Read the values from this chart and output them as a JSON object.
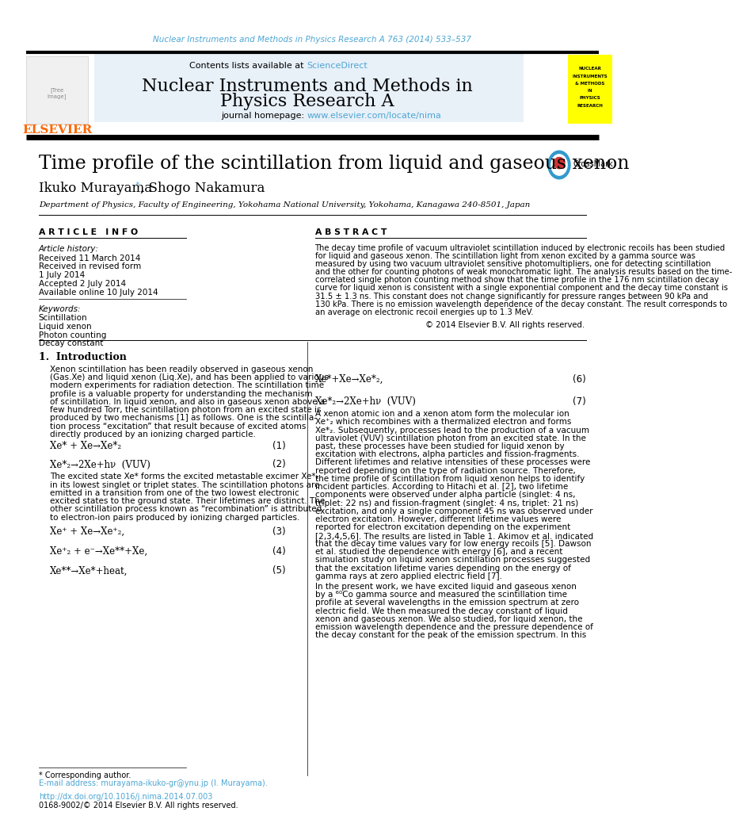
{
  "journal_ref": "Nuclear Instruments and Methods in Physics Research A 763 (2014) 533–537",
  "sciencedirect": "ScienceDirect",
  "journal_name_line1": "Nuclear Instruments and Methods in",
  "journal_name_line2": "Physics Research A",
  "journal_homepage_url": "www.elsevier.com/locate/nima",
  "article_title": "Time profile of the scintillation from liquid and gaseous xenon",
  "affiliation": "Department of Physics, Faculty of Engineering, Yokohama National University, Yokohama, Kanagawa 240-8501, Japan",
  "article_info_header": "A R T I C L E   I N F O",
  "article_history_label": "Article history:",
  "received": "Received 11 March 2014",
  "revised": "Received in revised form",
  "revised_date": "1 July 2014",
  "accepted": "Accepted 2 July 2014",
  "available": "Available online 10 July 2014",
  "keywords_label": "Keywords:",
  "keywords": [
    "Scintillation",
    "Liquid xenon",
    "Photon counting",
    "Decay constant"
  ],
  "abstract_header": "A B S T R A C T",
  "copyright": "© 2014 Elsevier B.V. All rights reserved.",
  "intro_header": "1.  Introduction",
  "footnote_star": "* Corresponding author.",
  "footnote_email": "E-mail address: murayama-ikuko-gr@ynu.jp (I. Murayama).",
  "footer_doi": "http://dx.doi.org/10.1016/j.nima.2014.07.003",
  "footer_issn": "0168-9002/© 2014 Elsevier B.V. All rights reserved.",
  "bg_header_color": "#e8f0f8",
  "journal_ref_color": "#4da6d4",
  "sciencedirect_color": "#4da6d4",
  "url_color": "#4da6d4",
  "link_color": "#4da6d4",
  "elsevier_color": "#ff6600",
  "header_bar_color": "#1a1a1a",
  "crossmark_blue": "#3399cc",
  "crossmark_red": "#cc3333",
  "yellow_badge_bg": "#ffff00",
  "abstract_lines": [
    "The decay time profile of vacuum ultraviolet scintillation induced by electronic recoils has been studied",
    "for liquid and gaseous xenon. The scintillation light from xenon excited by a gamma source was",
    "measured by using two vacuum ultraviolet sensitive photomultipliers, one for detecting scintillation",
    "and the other for counting photons of weak monochromatic light. The analysis results based on the time-",
    "correlated single photon counting method show that the time profile in the 176 nm scintillation decay",
    "curve for liquid xenon is consistent with a single exponential component and the decay time constant is",
    "31.5 ± 1.3 ns. This constant does not change significantly for pressure ranges between 90 kPa and",
    "130 kPa. There is no emission wavelength dependence of the decay constant. The result corresponds to",
    "an average on electronic recoil energies up to 1.3 MeV."
  ],
  "intro_p1_lines": [
    "Xenon scintillation has been readily observed in gaseous xenon",
    "(Gas.Xe) and liquid xenon (Liq.Xe), and has been applied to various",
    "modern experiments for radiation detection. The scintillation time",
    "profile is a valuable property for understanding the mechanism",
    "of scintillation. In liquid xenon, and also in gaseous xenon above a",
    "few hundred Torr, the scintillation photon from an excited state is",
    "produced by two mechanisms [1] as follows. One is the scintilla-",
    "tion process “excitation” that result because of excited atoms",
    "directly produced by an ionizing charged particle."
  ],
  "eq1_left": "Xe* + Xe→Xe*₂",
  "eq1_right": "(1)",
  "eq2_left": "Xe*₂→2Xe+hν  (VUV)",
  "eq2_right": "(2)",
  "intro_p2_lines": [
    "The excited state Xe* forms the excited metastable excimer Xe*₂",
    "in its lowest singlet or triplet states. The scintillation photons are",
    "emitted in a transition from one of the two lowest electronic",
    "excited states to the ground state. Their lifetimes are distinct. The",
    "other scintillation process known as “recombination” is attributed",
    "to electron-ion pairs produced by ionizing charged particles."
  ],
  "eq3_left": "Xe⁺ + Xe→Xe⁺₂,",
  "eq3_right": "(3)",
  "eq4_left": "Xe⁺₂ + e⁻→Xe**+Xe,",
  "eq4_right": "(4)",
  "eq5_left": "Xe**→Xe*+heat,",
  "eq5_right": "(5)",
  "eq6_left": "Xe*+Xe→Xe*₂,",
  "eq6_right": "(6)",
  "eq7_left": "Xe*₂→2Xe+hν  (VUV)",
  "eq7_right": "(7)",
  "right_p1_lines": [
    "A xenon atomic ion and a xenon atom form the molecular ion",
    "Xe⁺₂ which recombines with a thermalized electron and forms",
    "Xe*₂. Subsequently, processes lead to the production of a vacuum",
    "ultraviolet (VUV) scintillation photon from an excited state. In the",
    "past, these processes have been studied for liquid xenon by",
    "excitation with electrons, alpha particles and fission-fragments.",
    "Different lifetimes and relative intensities of these processes were",
    "reported depending on the type of radiation source. Therefore,",
    "the time profile of scintillation from liquid xenon helps to identify",
    "incident particles. According to Hitachi et al. [2], two lifetime",
    "components were observed under alpha particle (singlet: 4 ns,",
    "triplet: 22 ns) and fission-fragment (singlet: 4 ns, triplet: 21 ns)",
    "excitation, and only a single component 45 ns was observed under",
    "electron excitation. However, different lifetime values were",
    "reported for electron excitation depending on the experiment",
    "[2,3,4,5,6]. The results are listed in Table 1. Akimov et al. indicated",
    "that the decay time values vary for low energy recoils [5]. Dawson",
    "et al. studied the dependence with energy [6], and a recent",
    "simulation study on liquid xenon scintillation processes suggested",
    "that the excitation lifetime varies depending on the energy of",
    "gamma rays at zero applied electric field [7]."
  ],
  "present_lines": [
    "In the present work, we have excited liquid and gaseous xenon",
    "by a ⁶⁰Co gamma source and measured the scintillation time",
    "profile at several wavelengths in the emission spectrum at zero",
    "electric field. We then measured the decay constant of liquid",
    "xenon and gaseous xenon. We also studied, for liquid xenon, the",
    "emission wavelength dependence and the pressure dependence of",
    "the decay constant for the peak of the emission spectrum. In this"
  ],
  "badge_lines": [
    "NUCLEAR",
    "INSTRUMENTS",
    "& METHODS",
    "IN",
    "PHYSICS",
    "RESEARCH"
  ]
}
